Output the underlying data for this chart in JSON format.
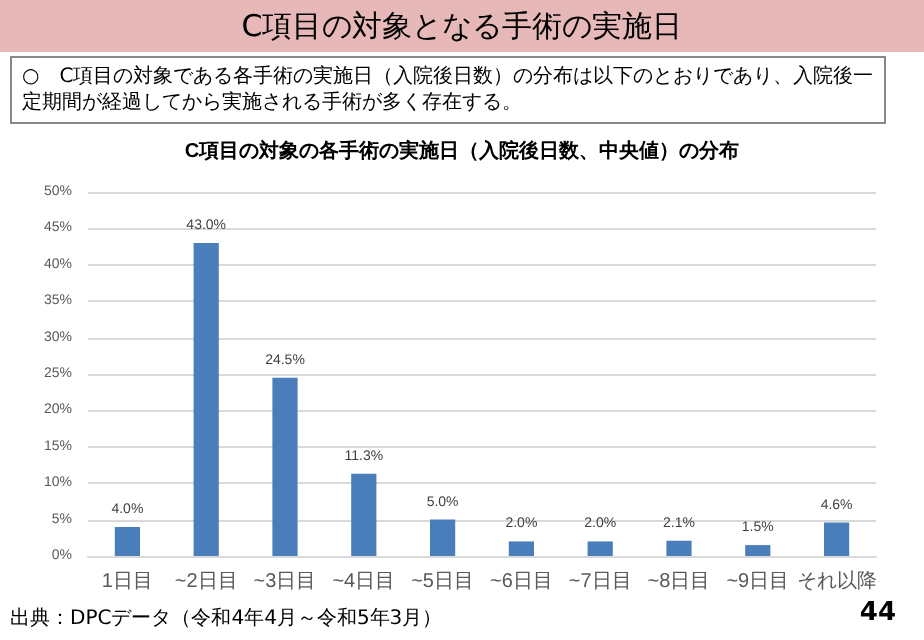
{
  "chart_data": {
    "type": "bar",
    "title": "C項目の対象となる手術の実施日",
    "subtitle": "C項目の対象の各手術の実施日（入院後日数、中央値）の分布",
    "annotations": [
      "○　C項目の対象である各手術の実施日（入院後日数）の分布は以下のとおりであり、入院後一定期間が経過してから実施される手術が多く存在する。",
      "出典：DPCデータ（令和4年4月～令和5年3月）",
      "44"
    ],
    "categories": [
      "1日目",
      "~2日目",
      "~3日目",
      "~4日目",
      "~5日目",
      "~6日目",
      "~7日目",
      "~8日目",
      "~9日目",
      "それ以降"
    ],
    "values": [
      4.0,
      43.0,
      24.5,
      11.3,
      5.0,
      2.0,
      2.0,
      2.1,
      1.5,
      4.6
    ],
    "value_labels": [
      "4.0%",
      "43.0%",
      "24.5%",
      "11.3%",
      "5.0%",
      "2.0%",
      "2.0%",
      "2.1%",
      "1.5%",
      "4.6%"
    ],
    "color": "#4a7ebb",
    "ylim": [
      0,
      50
    ],
    "yticks": [
      {
        "value": 0,
        "label": "0%"
      },
      {
        "value": 5,
        "label": "5%"
      },
      {
        "value": 10,
        "label": "10%"
      },
      {
        "value": 15,
        "label": "15%"
      },
      {
        "value": 20,
        "label": "20%"
      },
      {
        "value": 25,
        "label": "25%"
      },
      {
        "value": 30,
        "label": "30%"
      },
      {
        "value": 35,
        "label": "35%"
      },
      {
        "value": 40,
        "label": "40%"
      },
      {
        "value": 45,
        "label": "45%"
      },
      {
        "value": 50,
        "label": "50%"
      }
    ],
    "grid": "y"
  }
}
